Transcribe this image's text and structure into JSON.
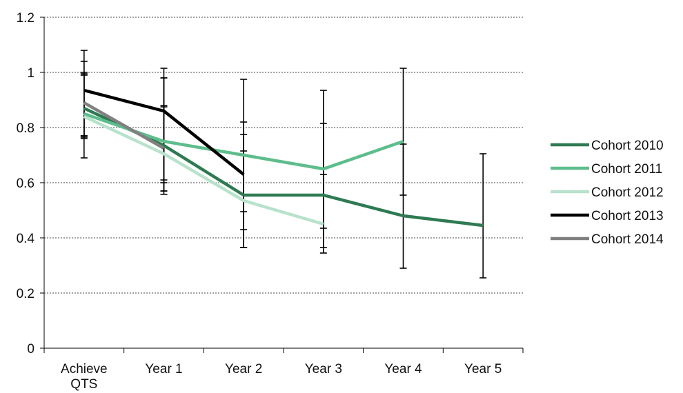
{
  "chart_data": {
    "type": "line",
    "categories": [
      [
        "Achieve",
        "QTS"
      ],
      [
        "Year 1"
      ],
      [
        "Year 2"
      ],
      [
        "Year 3"
      ],
      [
        "Year 4"
      ],
      [
        "Year 5"
      ]
    ],
    "ylim": [
      0,
      1.2
    ],
    "yticks": [
      "0",
      "0.2",
      "0.4",
      "0.6",
      "0.8",
      "1",
      "1.2"
    ],
    "grid": true,
    "legend_position": "right",
    "series": [
      {
        "name": "Cohort 2010",
        "color": "#2e7a52",
        "values": [
          0.87,
          0.735,
          0.555,
          0.555,
          0.48,
          0.445
        ],
        "error": [
          [
            0.765,
            0.995
          ],
          [
            0.57,
            0.875
          ],
          [
            0.43,
            0.775
          ],
          [
            0.365,
            0.815
          ],
          [
            0.29,
            0.74
          ],
          [
            0.255,
            0.705
          ]
        ]
      },
      {
        "name": "Cohort 2011",
        "color": "#5ebd8d",
        "values": [
          0.85,
          0.75,
          0.7,
          0.65,
          0.75,
          null
        ],
        "error": [
          [
            0.77,
            1.0
          ],
          [
            0.61,
            0.88
          ],
          [
            0.495,
            0.82
          ],
          [
            0.435,
            0.935
          ],
          [
            0.555,
            1.015
          ],
          null
        ]
      },
      {
        "name": "Cohort 2012",
        "color": "#b8e2cc",
        "values": [
          0.84,
          0.705,
          0.535,
          0.45,
          null,
          null
        ],
        "error": [
          [
            0.69,
            0.99
          ],
          [
            0.558,
            0.98
          ],
          [
            0.365,
            0.715
          ],
          [
            0.345,
            0.63
          ],
          null,
          null
        ]
      },
      {
        "name": "Cohort 2013",
        "color": "#000000",
        "values": [
          0.935,
          0.86,
          0.63,
          null,
          null,
          null
        ],
        "error": [
          [
            0.76,
            1.08
          ],
          [
            0.57,
            1.015
          ],
          [
            0.365,
            0.975
          ],
          null,
          null,
          null
        ]
      },
      {
        "name": "Cohort 2014",
        "color": "#808080",
        "values": [
          0.89,
          0.725,
          null,
          null,
          null,
          null
        ],
        "error": [
          [
            0.77,
            1.04
          ],
          [
            0.6,
            0.98
          ],
          null,
          null,
          null,
          null
        ]
      }
    ]
  }
}
